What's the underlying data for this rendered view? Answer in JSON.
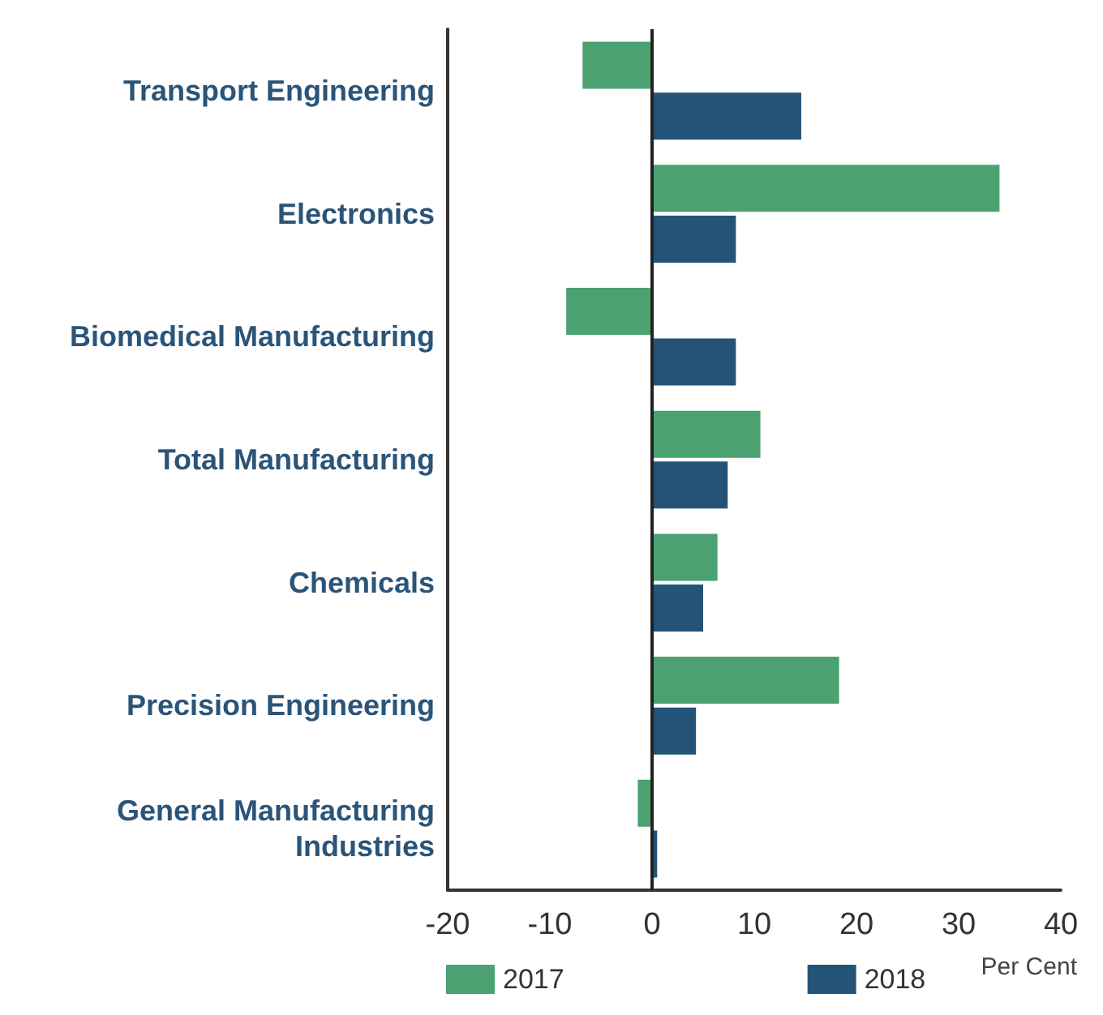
{
  "chart_data": {
    "type": "bar",
    "orientation": "horizontal",
    "categories": [
      "Transport Engineering",
      "Electronics",
      "Biomedical Manufacturing",
      "Total Manufacturing",
      "Chemicals",
      "Precision Engineering",
      "General Manufacturing\nIndustries"
    ],
    "series": [
      {
        "name": "2017",
        "color": "#4ba270",
        "values": [
          -6.8,
          34.0,
          -8.4,
          10.6,
          6.4,
          18.3,
          -1.4
        ]
      },
      {
        "name": "2018",
        "color": "#235478",
        "values": [
          14.6,
          8.2,
          8.2,
          7.4,
          5.0,
          4.3,
          0.5
        ]
      }
    ],
    "xlim": [
      -20,
      40
    ],
    "xticks": [
      -20,
      -10,
      0,
      10,
      20,
      30,
      40
    ],
    "xlabel": "Per Cent",
    "legend": "bottom",
    "grid": false,
    "ref_lines": [
      {
        "axis": "x",
        "value": 0,
        "color": "#222222"
      }
    ]
  }
}
